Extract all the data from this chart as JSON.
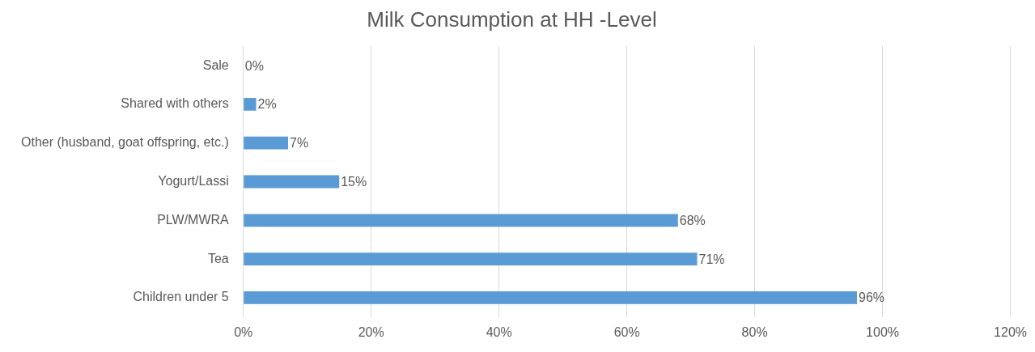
{
  "chart_data": {
    "type": "bar",
    "orientation": "horizontal",
    "title": "Milk Consumption at HH -Level",
    "categories": [
      "Sale",
      "Shared with others",
      "Other (husband, goat offspring, etc.)",
      "Yogurt/Lassi",
      "PLW/MWRA",
      "Tea",
      "Children under 5"
    ],
    "values": [
      0,
      2,
      7,
      15,
      68,
      71,
      96
    ],
    "value_labels": [
      "0%",
      "2%",
      "7%",
      "15%",
      "68%",
      "71%",
      "96%"
    ],
    "color": "#5b9bd5",
    "xlim": [
      0,
      120
    ],
    "xticks": [
      {
        "value": 0,
        "label": "0%"
      },
      {
        "value": 20,
        "label": "20%"
      },
      {
        "value": 40,
        "label": "40%"
      },
      {
        "value": 60,
        "label": "60%"
      },
      {
        "value": 80,
        "label": "80%"
      },
      {
        "value": 100,
        "label": "100%"
      },
      {
        "value": 120,
        "label": "120%"
      }
    ],
    "grid": "x"
  }
}
